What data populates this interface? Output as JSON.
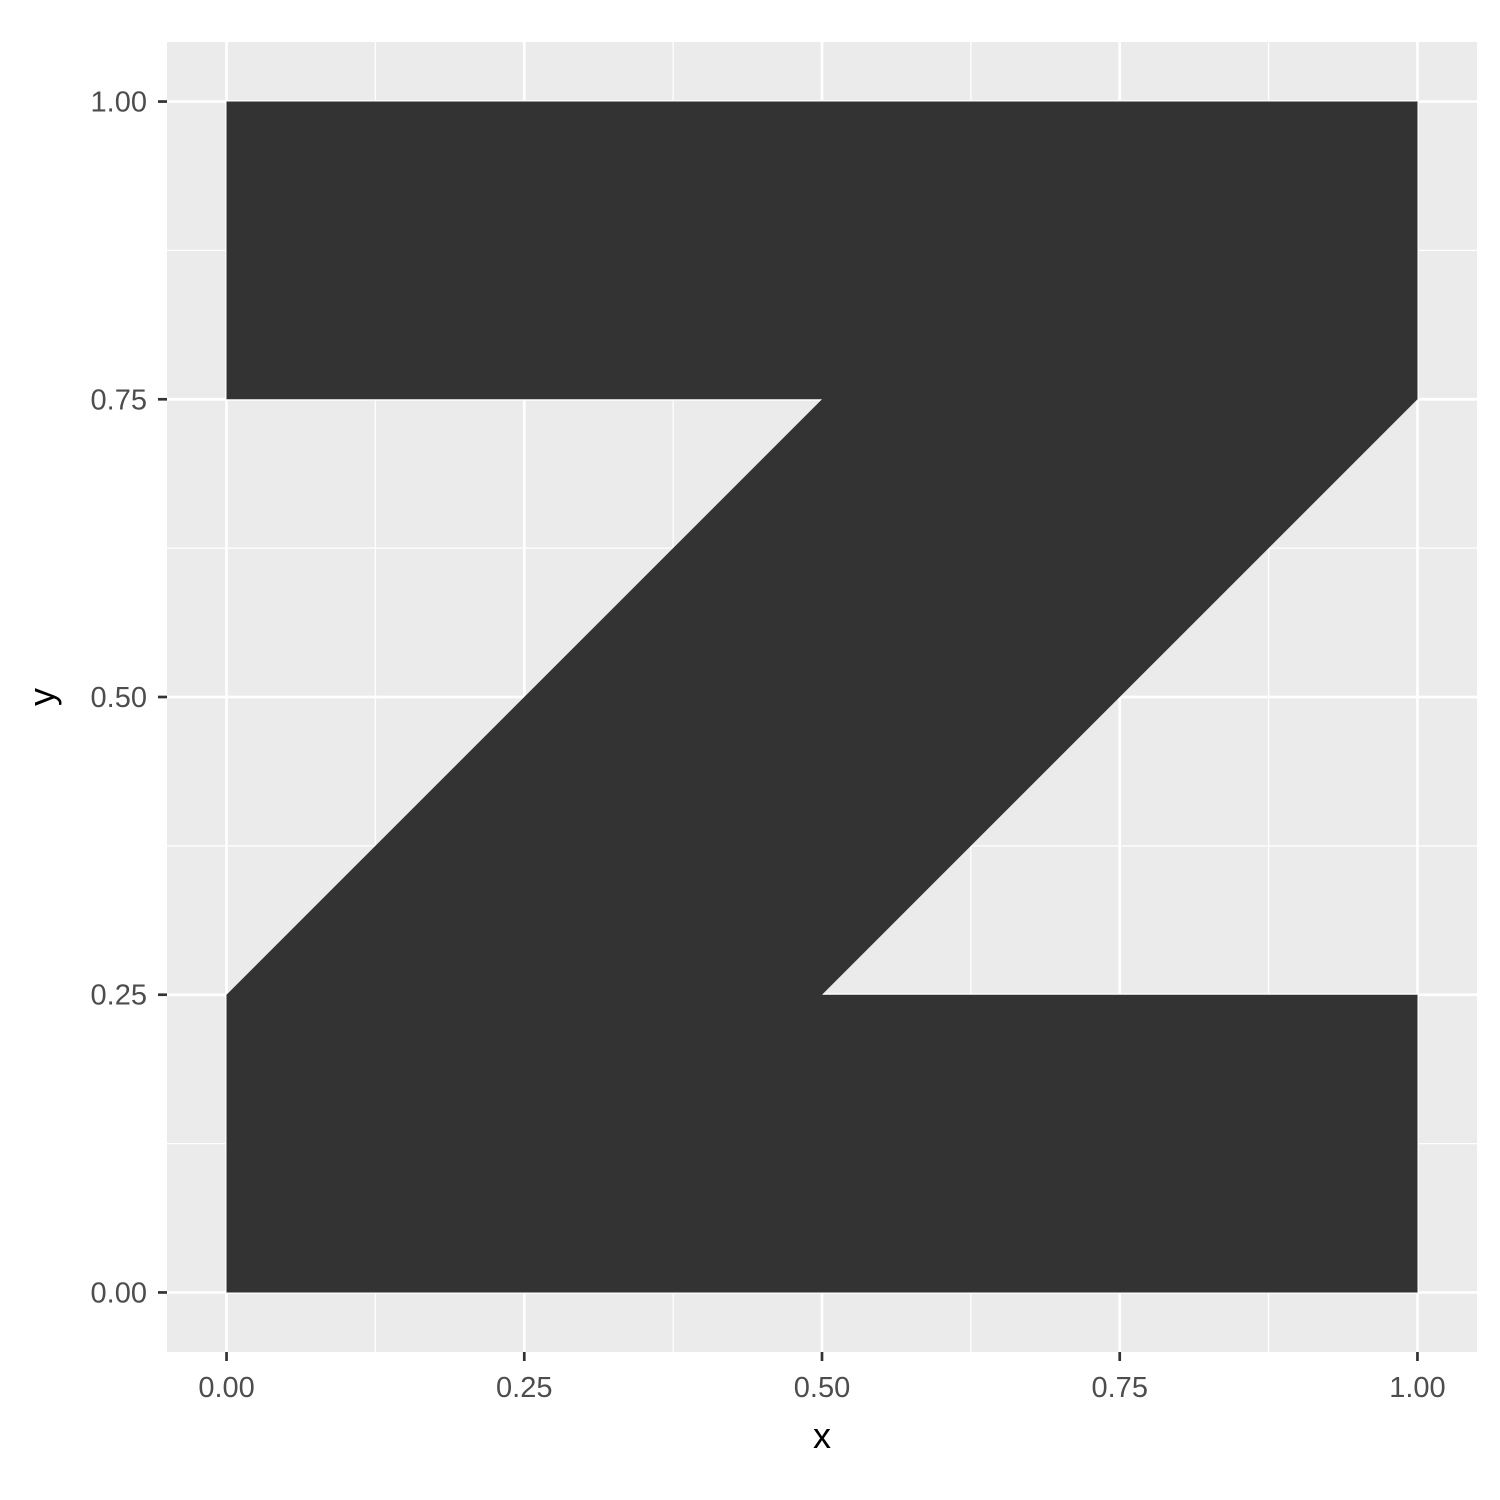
{
  "chart_data": {
    "type": "area",
    "xlabel": "x",
    "ylabel": "y",
    "xlim": [
      -0.05,
      1.05
    ],
    "ylim": [
      -0.05,
      1.05
    ],
    "x_ticks": [
      0,
      0.25,
      0.5,
      0.75,
      1
    ],
    "y_ticks": [
      0,
      0.25,
      0.5,
      0.75,
      1
    ],
    "x_tick_labels": [
      "0.00",
      "0.25",
      "0.50",
      "0.75",
      "1.00"
    ],
    "y_tick_labels": [
      "0.00",
      "0.25",
      "0.50",
      "0.75",
      "1.00"
    ],
    "x_minor_breaks": [
      0.125,
      0.375,
      0.625,
      0.875
    ],
    "y_minor_breaks": [
      0.125,
      0.375,
      0.625,
      0.875
    ],
    "grid": true,
    "polygon": {
      "x": [
        0,
        1,
        1,
        0.5,
        1,
        1,
        0,
        0,
        0.5,
        0
      ],
      "y": [
        1,
        1,
        0.75,
        0.25,
        0.25,
        0,
        0,
        0.25,
        0.75,
        0.75
      ]
    },
    "colors": {
      "fill": "#333333",
      "panel_background": "#EBEBEB",
      "grid": "#FFFFFF",
      "tick_mark": "#333333",
      "tick_label": "#4D4D4D",
      "axis_title": "#000000"
    }
  }
}
